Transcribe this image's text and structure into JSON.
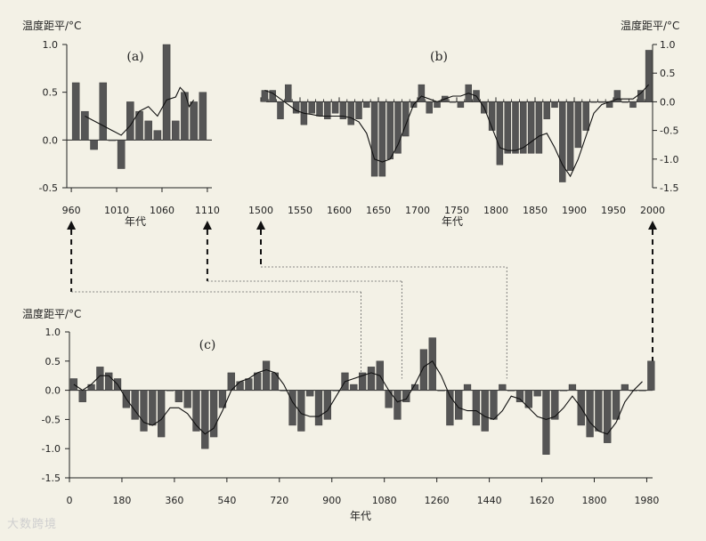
{
  "bar_color": "#555555",
  "line_color": "#111111",
  "chart_data": [
    {
      "id": "a",
      "type": "bar",
      "panel_label": "(a)",
      "ylabel": "温度距平/°C",
      "xlabel": "年代",
      "xlim": [
        955,
        1115
      ],
      "ylim": [
        -0.5,
        1.0
      ],
      "xticks": [
        960,
        1010,
        1060,
        1110
      ],
      "yticks": [
        -0.5,
        0.0,
        0.5,
        1.0
      ],
      "ytick_labels": [
        "-0.5",
        "0.0",
        "0.5",
        "1.0"
      ],
      "bar_width": 8,
      "x": [
        965,
        975,
        985,
        995,
        1005,
        1015,
        1025,
        1035,
        1045,
        1055,
        1065,
        1075,
        1085,
        1095,
        1105
      ],
      "values": [
        0.6,
        0.3,
        -0.1,
        0.6,
        0.0,
        -0.3,
        0.4,
        0.3,
        0.2,
        0.1,
        1.0,
        0.2,
        0.5,
        0.4,
        0.5
      ],
      "smooth": {
        "x": [
          975,
          985,
          995,
          1005,
          1015,
          1025,
          1035,
          1045,
          1055,
          1065,
          1075,
          1080,
          1085,
          1090,
          1095
        ],
        "y": [
          0.25,
          0.2,
          0.15,
          0.1,
          0.05,
          0.15,
          0.3,
          0.35,
          0.25,
          0.42,
          0.45,
          0.55,
          0.5,
          0.35,
          0.42
        ]
      },
      "grid": false
    },
    {
      "id": "b",
      "type": "bar",
      "panel_label": "(b)",
      "ylabel": "温度距平/°C",
      "xlabel": "年代",
      "xlim": [
        1500,
        2000
      ],
      "ylim": [
        -1.5,
        1.0
      ],
      "xticks": [
        1500,
        1550,
        1600,
        1650,
        1700,
        1750,
        1800,
        1850,
        1900,
        1950,
        2000
      ],
      "yticks": [
        -1.5,
        -1.0,
        -0.5,
        0.0,
        0.5,
        1.0
      ],
      "ytick_labels": [
        "-1.5",
        "-1.0",
        "-0.5",
        "0.0",
        "0.5",
        "1.0"
      ],
      "bar_width": 8,
      "x": [
        1505,
        1515,
        1525,
        1535,
        1545,
        1555,
        1565,
        1575,
        1585,
        1595,
        1605,
        1615,
        1625,
        1635,
        1645,
        1655,
        1665,
        1675,
        1685,
        1695,
        1705,
        1715,
        1725,
        1735,
        1745,
        1755,
        1765,
        1775,
        1785,
        1795,
        1805,
        1815,
        1825,
        1835,
        1845,
        1855,
        1865,
        1875,
        1885,
        1895,
        1905,
        1915,
        1925,
        1935,
        1945,
        1955,
        1965,
        1975,
        1985,
        1995
      ],
      "values": [
        0.2,
        0.2,
        -0.3,
        0.3,
        -0.2,
        -0.4,
        -0.2,
        -0.25,
        -0.3,
        -0.2,
        -0.3,
        -0.4,
        -0.3,
        -0.1,
        -1.3,
        -1.3,
        -1.0,
        -0.9,
        -0.6,
        -0.1,
        0.3,
        -0.2,
        -0.1,
        0.1,
        0.0,
        -0.1,
        0.3,
        0.2,
        -0.2,
        -0.5,
        -1.1,
        -0.9,
        -0.9,
        -0.9,
        -0.9,
        -0.9,
        -0.3,
        -0.1,
        -1.4,
        -1.2,
        -0.8,
        -0.5,
        0.0,
        0.0,
        -0.1,
        0.2,
        0.0,
        -0.1,
        0.2,
        0.9
      ],
      "smooth": {
        "x": [
          1505,
          1515,
          1525,
          1535,
          1545,
          1555,
          1565,
          1575,
          1585,
          1595,
          1605,
          1615,
          1625,
          1635,
          1645,
          1655,
          1665,
          1675,
          1685,
          1695,
          1705,
          1715,
          1725,
          1735,
          1745,
          1755,
          1765,
          1775,
          1785,
          1795,
          1805,
          1815,
          1825,
          1835,
          1845,
          1855,
          1865,
          1875,
          1885,
          1895,
          1905,
          1915,
          1925,
          1935,
          1945,
          1955,
          1965,
          1975,
          1985,
          1995
        ],
        "y": [
          0.2,
          0.15,
          0.05,
          -0.05,
          -0.15,
          -0.2,
          -0.22,
          -0.25,
          -0.25,
          -0.25,
          -0.25,
          -0.28,
          -0.35,
          -0.55,
          -1.0,
          -1.05,
          -1.0,
          -0.75,
          -0.4,
          -0.05,
          0.1,
          0.05,
          0.0,
          0.05,
          0.1,
          0.1,
          0.15,
          0.1,
          -0.1,
          -0.45,
          -0.8,
          -0.85,
          -0.85,
          -0.8,
          -0.7,
          -0.6,
          -0.55,
          -0.8,
          -1.1,
          -1.3,
          -1.0,
          -0.6,
          -0.2,
          -0.05,
          0.0,
          0.05,
          0.05,
          0.05,
          0.15,
          0.3
        ]
      },
      "grid": false
    },
    {
      "id": "c",
      "type": "bar",
      "panel_label": "(c)",
      "ylabel": "温度距平/°C",
      "xlabel": "年代",
      "xlim": [
        0,
        2000
      ],
      "ylim": [
        -1.5,
        1.0
      ],
      "xticks": [
        0,
        180,
        360,
        540,
        720,
        900,
        1080,
        1260,
        1440,
        1620,
        1800,
        1980
      ],
      "yticks": [
        -1.5,
        -1.0,
        -0.5,
        0.0,
        0.5,
        1.0
      ],
      "ytick_labels": [
        "-1.5",
        "-1.0",
        "-0.5",
        "0.0",
        "0.5",
        "1.0"
      ],
      "bar_width": 24,
      "x": [
        15,
        45,
        75,
        105,
        135,
        165,
        195,
        225,
        255,
        285,
        315,
        345,
        375,
        405,
        435,
        465,
        495,
        525,
        555,
        585,
        615,
        645,
        675,
        705,
        735,
        765,
        795,
        825,
        855,
        885,
        915,
        945,
        975,
        1005,
        1035,
        1065,
        1095,
        1125,
        1155,
        1185,
        1215,
        1245,
        1275,
        1305,
        1335,
        1365,
        1395,
        1425,
        1455,
        1485,
        1515,
        1545,
        1575,
        1605,
        1635,
        1665,
        1695,
        1725,
        1755,
        1785,
        1815,
        1845,
        1875,
        1905,
        1935,
        1965,
        1995
      ],
      "values": [
        0.2,
        -0.2,
        0.1,
        0.4,
        0.3,
        0.2,
        -0.3,
        -0.5,
        -0.7,
        -0.6,
        -0.8,
        0.0,
        -0.2,
        -0.3,
        -0.7,
        -1.0,
        -0.8,
        -0.3,
        0.3,
        0.15,
        0.2,
        0.3,
        0.5,
        0.3,
        0.0,
        -0.6,
        -0.7,
        -0.1,
        -0.6,
        -0.5,
        0.0,
        0.3,
        0.1,
        0.3,
        0.4,
        0.5,
        -0.3,
        -0.5,
        -0.2,
        0.1,
        0.7,
        0.9,
        0.0,
        -0.6,
        -0.5,
        0.1,
        -0.6,
        -0.7,
        -0.5,
        0.1,
        0.0,
        -0.2,
        -0.3,
        -0.1,
        -1.1,
        -0.5,
        0.0,
        0.1,
        -0.6,
        -0.8,
        -0.7,
        -0.9,
        -0.5,
        0.1,
        0.0,
        0.0,
        0.5
      ],
      "smooth": {
        "x": [
          15,
          45,
          75,
          105,
          135,
          165,
          195,
          225,
          255,
          285,
          315,
          345,
          375,
          405,
          435,
          465,
          495,
          525,
          555,
          585,
          615,
          645,
          675,
          705,
          735,
          765,
          795,
          825,
          855,
          885,
          915,
          945,
          975,
          1005,
          1035,
          1065,
          1095,
          1125,
          1155,
          1185,
          1215,
          1245,
          1275,
          1305,
          1335,
          1365,
          1395,
          1425,
          1455,
          1485,
          1515,
          1545,
          1575,
          1605,
          1635,
          1665,
          1695,
          1725,
          1755,
          1785,
          1815,
          1845,
          1875,
          1905,
          1935,
          1965
        ],
        "y": [
          0.1,
          0.0,
          0.1,
          0.25,
          0.25,
          0.1,
          -0.15,
          -0.35,
          -0.55,
          -0.6,
          -0.5,
          -0.3,
          -0.3,
          -0.4,
          -0.6,
          -0.75,
          -0.65,
          -0.35,
          0.0,
          0.15,
          0.2,
          0.3,
          0.35,
          0.3,
          0.1,
          -0.2,
          -0.4,
          -0.45,
          -0.45,
          -0.35,
          -0.1,
          0.15,
          0.2,
          0.25,
          0.3,
          0.25,
          0.0,
          -0.2,
          -0.15,
          0.1,
          0.4,
          0.5,
          0.25,
          -0.1,
          -0.3,
          -0.35,
          -0.35,
          -0.45,
          -0.5,
          -0.35,
          -0.1,
          -0.15,
          -0.3,
          -0.45,
          -0.5,
          -0.45,
          -0.3,
          -0.1,
          -0.3,
          -0.55,
          -0.7,
          -0.75,
          -0.55,
          -0.2,
          0.0,
          0.15
        ]
      },
      "grid": false
    }
  ],
  "connectors": [
    {
      "from_panel": "a",
      "x_value": 960,
      "to_x_value": 1000
    },
    {
      "from_panel": "a",
      "x_value": 1110,
      "to_x_value": 1140
    },
    {
      "from_panel": "b",
      "x_value": 1500,
      "to_x_value": 1500
    },
    {
      "from_panel": "b",
      "x_value": 2000,
      "to_x_value": 2000
    }
  ],
  "watermark": "大数跨境"
}
